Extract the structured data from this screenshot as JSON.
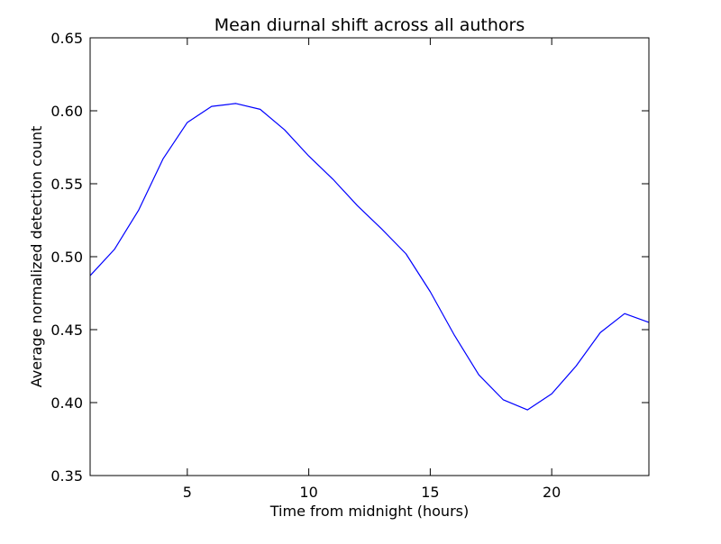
{
  "chart_data": {
    "type": "line",
    "title": "Mean diurnal shift across all authors",
    "xlabel": "Time from midnight (hours)",
    "ylabel": "Average normalized detection count",
    "xlim": [
      1,
      24
    ],
    "ylim": [
      0.35,
      0.65
    ],
    "x_ticks": [
      5,
      10,
      15,
      20
    ],
    "x_tick_labels": [
      "5",
      "10",
      "15",
      "20"
    ],
    "y_ticks": [
      0.35,
      0.4,
      0.45,
      0.5,
      0.55,
      0.6,
      0.65
    ],
    "y_tick_labels": [
      "0.35",
      "0.40",
      "0.45",
      "0.50",
      "0.55",
      "0.60",
      "0.65"
    ],
    "grid": false,
    "legend": "none",
    "line_color": "#0000ff",
    "series": [
      {
        "x": [
          1,
          2,
          3,
          4,
          5,
          6,
          7,
          8,
          9,
          10,
          11,
          12,
          13,
          14,
          15,
          16,
          17,
          18,
          19,
          20,
          21,
          22,
          23,
          24
        ],
        "values": [
          0.487,
          0.505,
          0.532,
          0.567,
          0.592,
          0.603,
          0.605,
          0.601,
          0.587,
          0.569,
          0.553,
          0.535,
          0.519,
          0.502,
          0.476,
          0.446,
          0.419,
          0.402,
          0.395,
          0.406,
          0.425,
          0.448,
          0.461,
          0.455
        ]
      }
    ]
  }
}
